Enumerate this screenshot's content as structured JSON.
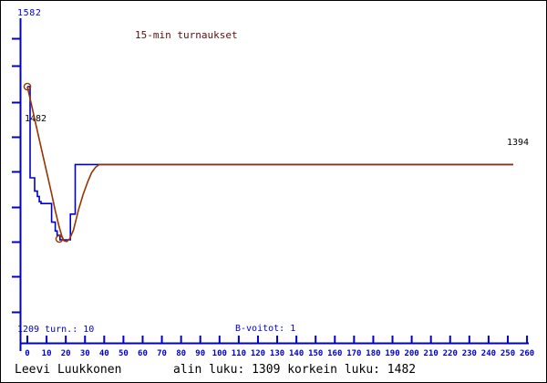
{
  "colors": {
    "axis_blue": "#0000cc",
    "series_blue": "#0000cc",
    "series_brown": "#993300",
    "title_maroon": "#5a0f0f",
    "text_black": "#000000",
    "background": "#ffffff",
    "border": "#000000"
  },
  "labels": {
    "y_max_label": "1582",
    "start_value_label": "1482",
    "end_value_label": "1394",
    "bottom_axis_label": "1209 turn.: 10",
    "b_wins_label": "B-voitot: 1",
    "footer_name": "Leevi Luukkonen",
    "footer_stats": "alin luku: 1309  korkein luku: 1482"
  },
  "chart_data": {
    "type": "line",
    "title": "15-min turnaukset",
    "player": "Leevi Luukkonen",
    "tournaments": 10,
    "b_wins": 1,
    "lowest_rating": 1309,
    "highest_rating": 1482,
    "final_rating": 1394,
    "x_axis": {
      "min": 0,
      "max": 260,
      "ticks": [
        0,
        10,
        20,
        30,
        40,
        50,
        60,
        70,
        80,
        90,
        100,
        110,
        120,
        130,
        140,
        150,
        160,
        170,
        180,
        190,
        200,
        210,
        220,
        230,
        240,
        250,
        260
      ]
    },
    "y_axis": {
      "top_label": 1582,
      "bottom_label": 1209,
      "grid": false
    },
    "legend_position": "none",
    "series": [
      {
        "name": "rating-steps",
        "style": "step",
        "color_key": "series_blue",
        "points": [
          [
            0,
            1482
          ],
          [
            1.4,
            1482
          ],
          [
            1.4,
            1379
          ],
          [
            3.8,
            1379
          ],
          [
            3.8,
            1364
          ],
          [
            5.2,
            1364
          ],
          [
            5.2,
            1358
          ],
          [
            6.2,
            1358
          ],
          [
            6.2,
            1352
          ],
          [
            7.1,
            1352
          ],
          [
            7.1,
            1350
          ],
          [
            12.6,
            1350
          ],
          [
            12.6,
            1329
          ],
          [
            14.5,
            1329
          ],
          [
            14.5,
            1319
          ],
          [
            15.5,
            1319
          ],
          [
            15.5,
            1314
          ],
          [
            17,
            1314
          ],
          [
            17,
            1309
          ],
          [
            22.4,
            1309
          ],
          [
            22.4,
            1338
          ],
          [
            24.9,
            1338
          ],
          [
            24.9,
            1394
          ],
          [
            252.8,
            1394
          ]
        ]
      },
      {
        "name": "smoothed-rating",
        "style": "smooth",
        "color_key": "series_brown",
        "points": [
          [
            0,
            1482
          ],
          [
            2.5,
            1458
          ],
          [
            5,
            1434
          ],
          [
            7.5,
            1410
          ],
          [
            10,
            1386
          ],
          [
            12.5,
            1362
          ],
          [
            14.5,
            1342
          ],
          [
            16.5,
            1324
          ],
          [
            18,
            1313
          ],
          [
            19,
            1308
          ],
          [
            20.5,
            1307
          ],
          [
            22,
            1310
          ],
          [
            24,
            1320
          ],
          [
            26.5,
            1342
          ],
          [
            29,
            1360
          ],
          [
            31.5,
            1375
          ],
          [
            33.5,
            1385
          ],
          [
            35.5,
            1391
          ],
          [
            37.5,
            1394
          ],
          [
            252.8,
            1394
          ]
        ]
      }
    ],
    "markers": [
      {
        "name": "start-marker",
        "x": 0,
        "rating": 1482
      },
      {
        "name": "min-marker",
        "x": 16.6,
        "rating": 1310
      }
    ]
  }
}
